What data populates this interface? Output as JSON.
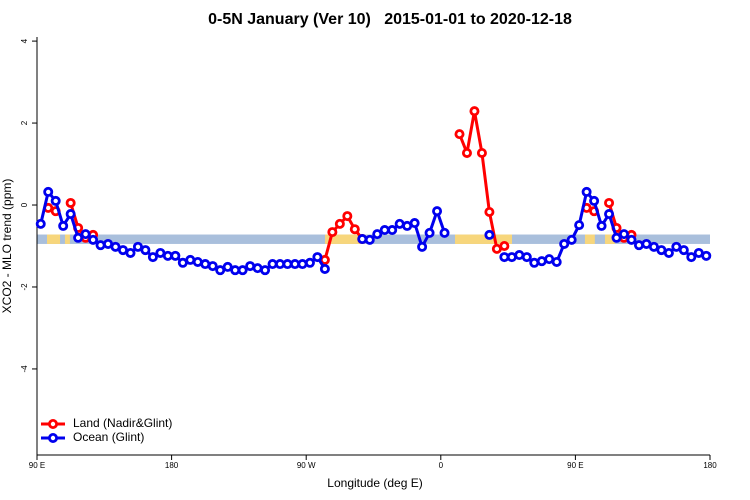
{
  "chart_data": {
    "type": "line",
    "title": "0-5N January (Ver 10)   2015-01-01 to 2020-12-18",
    "x_label": "Longitude (deg E)",
    "y_label": "XCO2 - MLO trend (ppm)",
    "xlim": [
      90,
      540
    ],
    "ylim": [
      -6.1,
      4.1
    ],
    "xticks": [
      {
        "value": 90,
        "label": "90 E"
      },
      180,
      {
        "value": 270,
        "label": "90 W"
      },
      {
        "value": 360,
        "label": "0"
      },
      {
        "value": 450,
        "label": "90 E"
      },
      {
        "value": 540,
        "label": "180"
      }
    ],
    "yticks": [
      -4,
      -2,
      0,
      2,
      4
    ],
    "legend": "bottom-left",
    "band": {
      "range": [
        -0.95,
        -0.72
      ],
      "color": "#a9bfdc"
    },
    "land_band": {
      "color": "#f7d67c",
      "ranges": [
        [
          96.7,
          105.4
        ],
        [
          108.7,
          112
        ],
        [
          282.6,
          307.3
        ],
        [
          369.5,
          407.6
        ],
        [
          456.4,
          463
        ],
        [
          469.8,
          476.5
        ]
      ]
    },
    "x": [
      92.5,
      97.5,
      102.5,
      107.5,
      112.5,
      117.5,
      122.5,
      127.5,
      132.5,
      137.5,
      142.5,
      147.5,
      152.5,
      157.5,
      162.5,
      167.5,
      172.5,
      177.5,
      182.5,
      187.5,
      192.5,
      197.5,
      202.5,
      207.5,
      212.5,
      217.5,
      222.5,
      227.5,
      232.5,
      237.5,
      242.5,
      247.5,
      252.5,
      257.5,
      262.5,
      267.5,
      272.5,
      277.5,
      282.5,
      287.5,
      292.5,
      297.5,
      302.5,
      307.5,
      312.5,
      317.5,
      322.5,
      327.5,
      332.5,
      337.5,
      342.5,
      347.5,
      352.5,
      357.5,
      362.5,
      367.5,
      372.5,
      377.5,
      382.5,
      387.5,
      392.5,
      397.5,
      402.5,
      407.5,
      412.5,
      417.5,
      422.5,
      427.5,
      432.5,
      437.5,
      442.5,
      447.5,
      452.5,
      457.5,
      462.5,
      467.5,
      472.5,
      477.5,
      482.5,
      487.5,
      492.5,
      497.5,
      502.5,
      507.5,
      512.5,
      517.5,
      522.5,
      527.5,
      532.5,
      537.5
    ],
    "series": [
      {
        "name": "Land (Nadir&Glint)",
        "color": "#ff0000",
        "values": [
          null,
          -0.07,
          -0.15,
          null,
          0.05,
          -0.56,
          -0.8,
          -0.73,
          null,
          null,
          null,
          null,
          null,
          null,
          null,
          null,
          null,
          null,
          null,
          null,
          null,
          null,
          null,
          null,
          null,
          null,
          null,
          null,
          null,
          null,
          null,
          null,
          null,
          null,
          null,
          null,
          null,
          null,
          -1.34,
          -0.66,
          -0.46,
          -0.27,
          -0.59,
          -0.83,
          null,
          null,
          null,
          null,
          null,
          null,
          null,
          null,
          null,
          null,
          null,
          null,
          1.73,
          1.27,
          2.29,
          1.27,
          -0.17,
          -1.07,
          -1.0,
          null,
          null,
          null,
          null,
          null,
          null,
          null,
          null,
          null,
          null,
          -0.07,
          -0.15,
          null,
          0.05,
          -0.56,
          -0.8,
          -0.73,
          null,
          null,
          null,
          null,
          null,
          null,
          null,
          null,
          null,
          null
        ]
      },
      {
        "name": "Ocean (Glint)",
        "color": "#0000ee",
        "values": [
          -0.46,
          0.32,
          0.1,
          -0.51,
          -0.22,
          -0.8,
          -0.71,
          -0.85,
          -0.98,
          -0.95,
          -1.02,
          -1.1,
          -1.17,
          -1.02,
          -1.1,
          -1.27,
          -1.17,
          -1.24,
          -1.24,
          -1.41,
          -1.34,
          -1.39,
          -1.44,
          -1.49,
          -1.59,
          -1.51,
          -1.59,
          -1.59,
          -1.49,
          -1.54,
          -1.59,
          -1.44,
          -1.44,
          -1.44,
          -1.44,
          -1.44,
          -1.41,
          -1.27,
          -1.56,
          null,
          null,
          null,
          null,
          -0.83,
          -0.85,
          -0.71,
          -0.61,
          -0.61,
          -0.46,
          -0.51,
          -0.44,
          -1.02,
          -0.68,
          -0.15,
          -0.68,
          null,
          null,
          null,
          null,
          null,
          -0.73,
          null,
          -1.27,
          -1.27,
          -1.22,
          -1.27,
          -1.41,
          -1.37,
          -1.32,
          -1.39,
          -0.95,
          -0.85,
          -0.49,
          0.32,
          0.1,
          -0.51,
          -0.22,
          -0.8,
          -0.71,
          -0.85,
          -0.98,
          -0.95,
          -1.02,
          -1.1,
          -1.17,
          -1.02,
          -1.1,
          -1.27,
          -1.17,
          -1.24
        ]
      }
    ]
  }
}
